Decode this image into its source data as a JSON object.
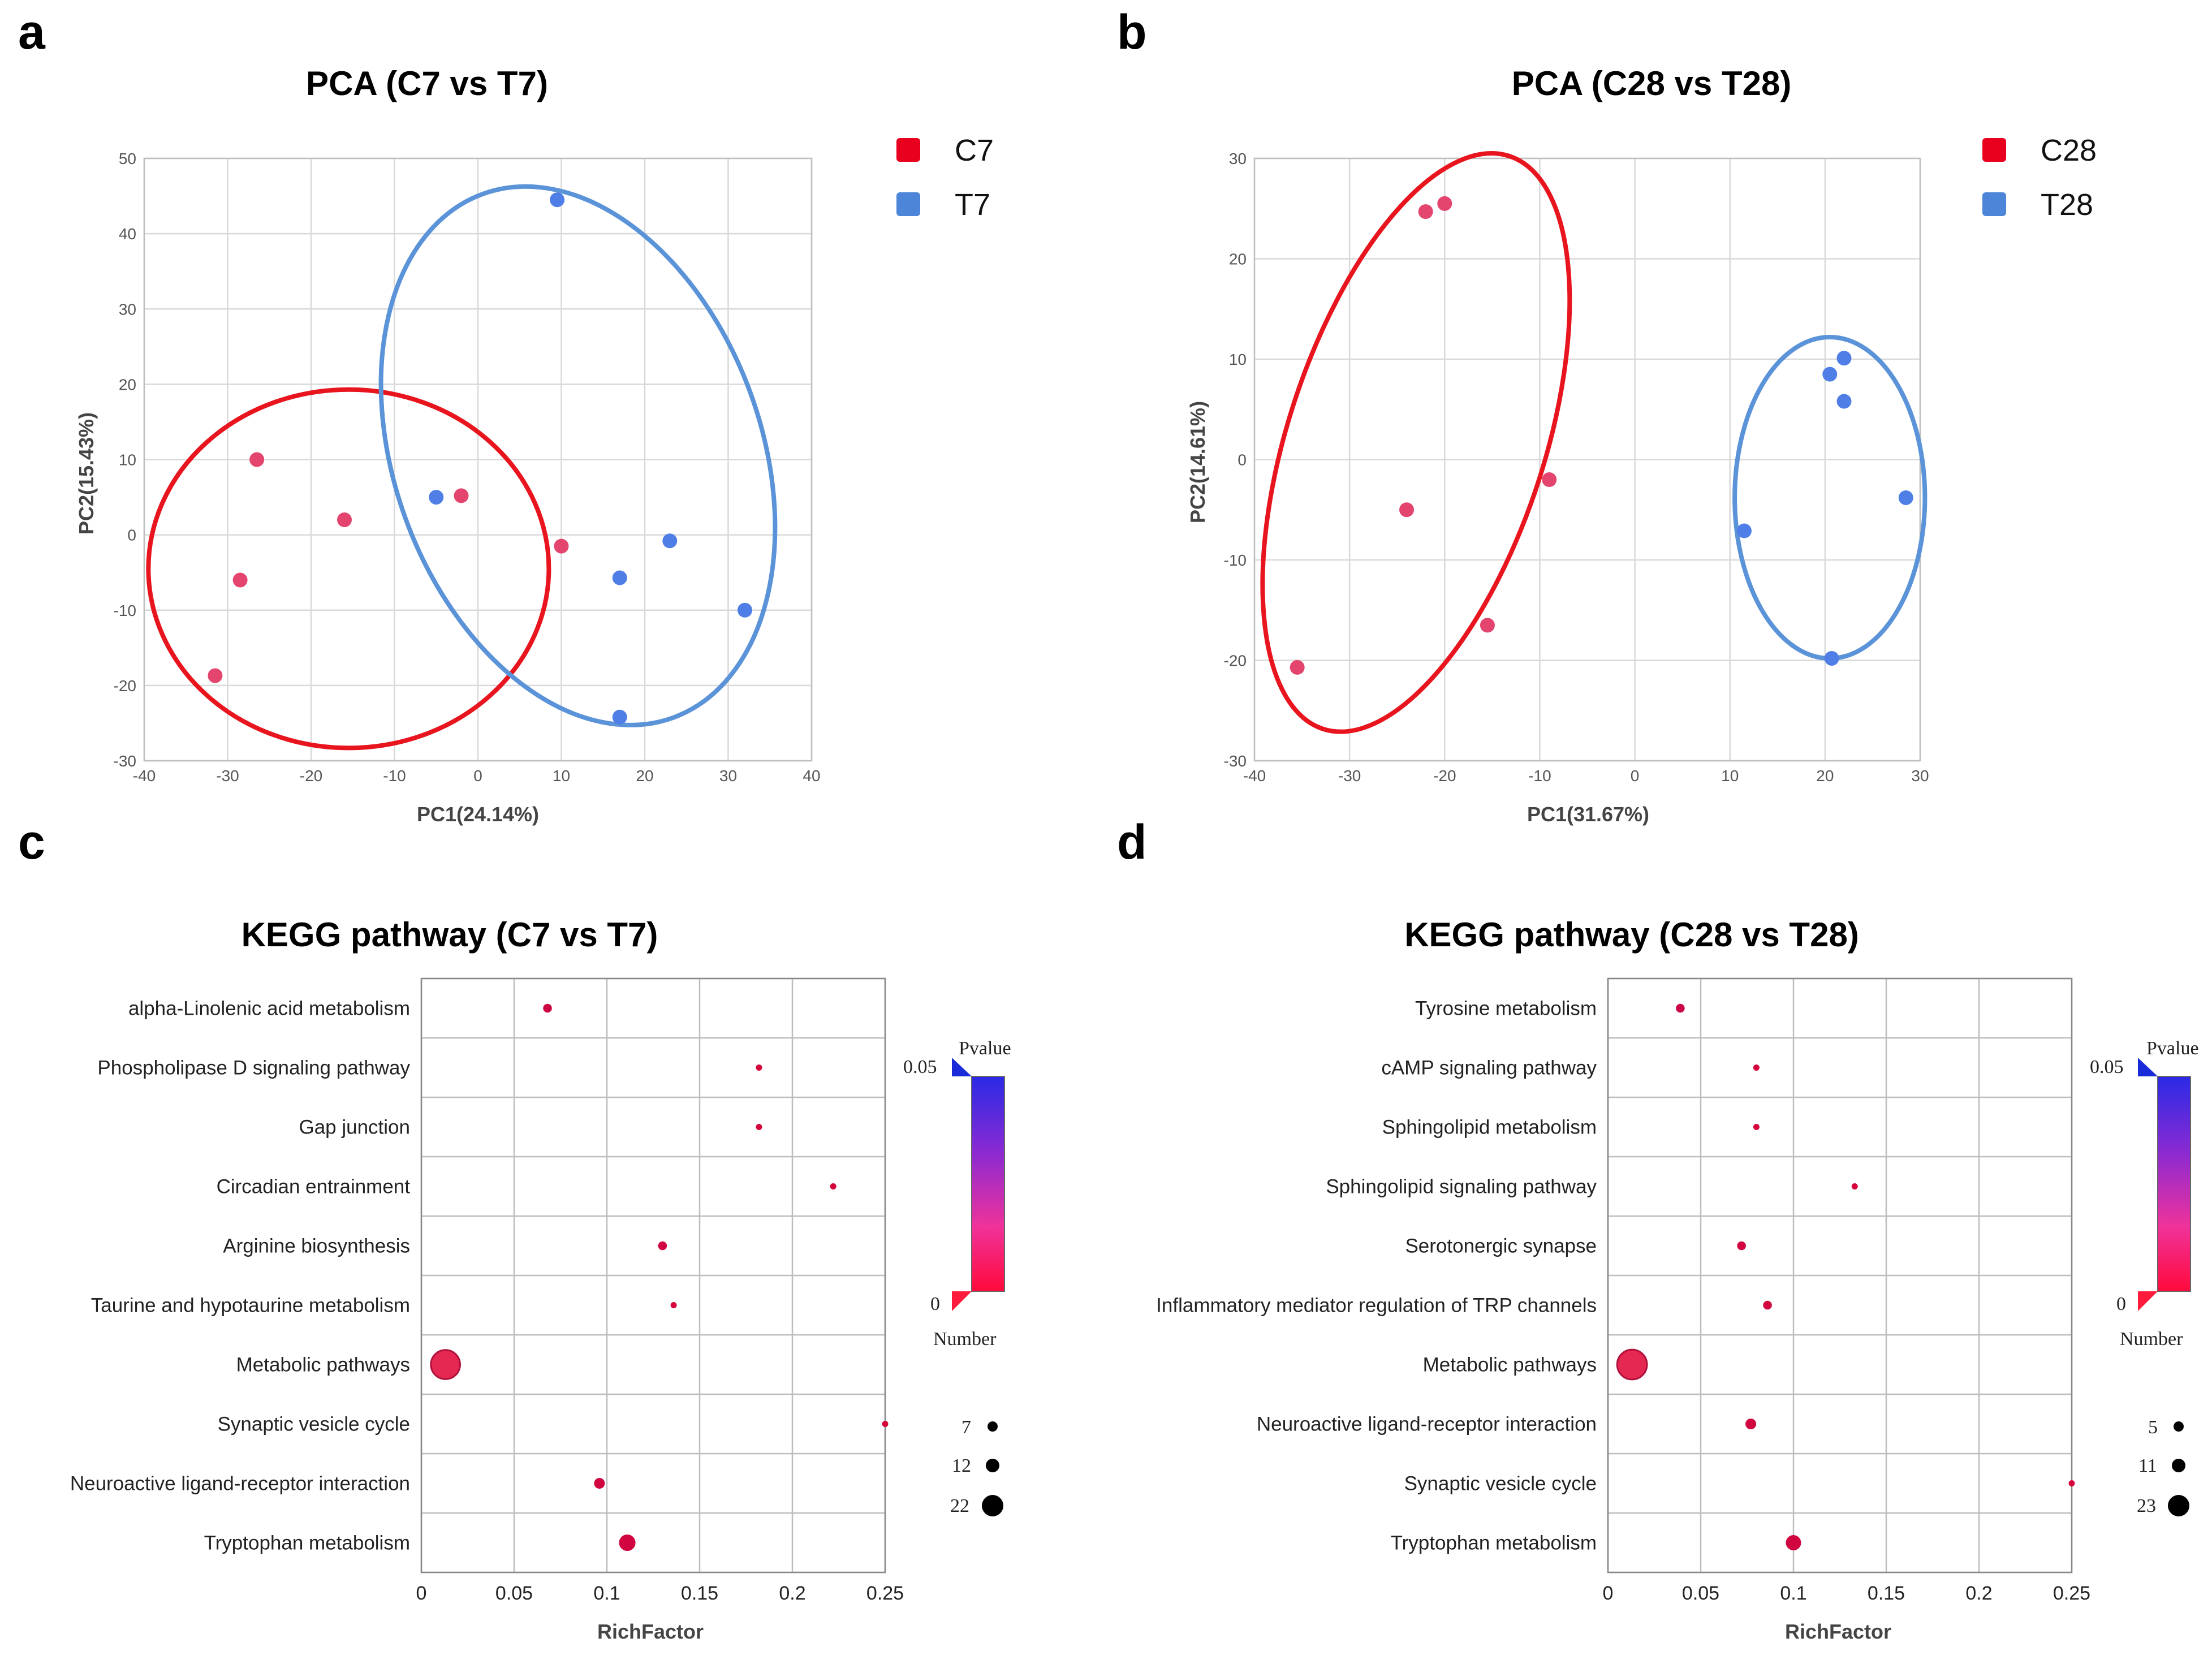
{
  "panels": {
    "a": "a",
    "b": "b",
    "c": "c",
    "d": "d"
  },
  "colors": {
    "red": "#e8001e",
    "blue": "#4d86d8",
    "ellipse_red": "#e8141e",
    "ellipse_blue": "#5b93d8",
    "point_red": "#e3456e",
    "point_blue": "#4f7fe6"
  },
  "chart_data": [
    {
      "id": "pca_c7_t7",
      "type": "scatter",
      "title": "PCA (C7 vs T7)",
      "xlabel": "PC1(24.14%)",
      "ylabel": "PC2(15.43%)",
      "xlim": [
        -40,
        40
      ],
      "ylim": [
        -30,
        50
      ],
      "xticks": [
        -40,
        -30,
        -20,
        -10,
        0,
        10,
        20,
        30,
        40
      ],
      "yticks": [
        -30,
        -20,
        -10,
        0,
        10,
        20,
        30,
        40,
        50
      ],
      "grid": true,
      "legend_position": "top-right",
      "series": [
        {
          "name": "C7",
          "color": "red",
          "points": [
            [
              -26.5,
              10
            ],
            [
              -16,
              2
            ],
            [
              -2,
              5.2
            ],
            [
              -28.5,
              -6
            ],
            [
              10,
              -1.5
            ],
            [
              -31.5,
              -18.7
            ]
          ],
          "ellipse": {
            "cx": -15.5,
            "cy": -4.5,
            "rx": 24,
            "ry": 23.8,
            "rotation": 0
          }
        },
        {
          "name": "T7",
          "color": "blue",
          "points": [
            [
              9.5,
              44.5
            ],
            [
              -5,
              5
            ],
            [
              23,
              -0.8
            ],
            [
              17,
              -5.7
            ],
            [
              32,
              -10
            ],
            [
              17,
              -24.2
            ]
          ],
          "ellipse": {
            "cx": 12,
            "cy": 10.5,
            "rx": 22,
            "ry": 37,
            "rotation": -20
          }
        }
      ]
    },
    {
      "id": "pca_c28_t28",
      "type": "scatter",
      "title": "PCA (C28 vs T28)",
      "xlabel": "PC1(31.67%)",
      "ylabel": "PC2(14.61%)",
      "xlim": [
        -40,
        30
      ],
      "ylim": [
        -30,
        30
      ],
      "xticks": [
        -40,
        -30,
        -20,
        -10,
        0,
        10,
        20,
        30
      ],
      "yticks": [
        -30,
        -20,
        -10,
        0,
        10,
        20,
        30
      ],
      "grid": true,
      "legend_position": "top-right",
      "series": [
        {
          "name": "C28",
          "color": "red",
          "points": [
            [
              -22,
              24.7
            ],
            [
              -20,
              25.5
            ],
            [
              -24,
              -5
            ],
            [
              -9,
              -2
            ],
            [
              -15.5,
              -16.5
            ],
            [
              -35.5,
              -20.7
            ]
          ],
          "ellipse": {
            "cx": -23,
            "cy": 1.7,
            "rx": 13.5,
            "ry": 30,
            "rotation": 18
          }
        },
        {
          "name": "T28",
          "color": "blue",
          "points": [
            [
              20.5,
              8.5
            ],
            [
              22,
              10.1
            ],
            [
              22,
              5.8
            ],
            [
              28.5,
              -3.8
            ],
            [
              11.5,
              -7.1
            ],
            [
              20.7,
              -19.8
            ]
          ],
          "ellipse": {
            "cx": 20.5,
            "cy": -3.8,
            "rx": 10,
            "ry": 16,
            "rotation": 0
          }
        }
      ]
    },
    {
      "id": "kegg_c7_t7",
      "type": "scatter",
      "subtype": "bubble",
      "title": "KEGG pathway (C7 vs T7)",
      "xlabel": "RichFactor",
      "xlim": [
        0,
        0.25
      ],
      "xticks": [
        "0",
        "0.05",
        "0.1",
        "0.15",
        "0.2",
        "0.25"
      ],
      "categories": [
        "alpha-Linolenic acid metabolism",
        "Phospholipase D signaling pathway",
        "Gap junction",
        "Circadian entrainment",
        "Arginine biosynthesis",
        "Taurine and hypotaurine metabolism",
        "Metabolic pathways",
        "Synaptic vesicle cycle",
        "Neuroactive ligand-receptor interaction",
        "Tryptophan metabolism"
      ],
      "values": [
        0.068,
        0.182,
        0.182,
        0.222,
        0.13,
        0.136,
        0.013,
        0.25,
        0.096,
        0.111
      ],
      "number": [
        2,
        1,
        1,
        1,
        2,
        1,
        22,
        1,
        3,
        7
      ],
      "pvalue_fraction": [
        0.15,
        0.1,
        0.1,
        0.1,
        0.12,
        0.1,
        0.05,
        0.1,
        0.12,
        0.12
      ],
      "colorbar": {
        "label": "Pvalue",
        "max_label": "0.05",
        "min_label": "0"
      },
      "size_legend": {
        "label": "Number",
        "entries": [
          "7",
          "12",
          "22"
        ]
      }
    },
    {
      "id": "kegg_c28_t28",
      "type": "scatter",
      "subtype": "bubble",
      "title": "KEGG pathway (C28 vs T28)",
      "xlabel": "RichFactor",
      "xlim": [
        0,
        0.25
      ],
      "xticks": [
        "0",
        "0.05",
        "0.1",
        "0.15",
        "0.2",
        "0.25"
      ],
      "categories": [
        "Tyrosine metabolism",
        "cAMP signaling pathway",
        "Sphingolipid metabolism",
        "Sphingolipid signaling pathway",
        "Serotonergic synapse",
        "Inflammatory mediator regulation of TRP channels",
        "Metabolic pathways",
        "Neuroactive ligand-receptor interaction",
        "Synaptic vesicle cycle",
        "Tryptophan metabolism"
      ],
      "values": [
        0.039,
        0.08,
        0.08,
        0.133,
        0.072,
        0.086,
        0.013,
        0.077,
        0.25,
        0.1
      ],
      "number": [
        2,
        1,
        1,
        1,
        2,
        2,
        23,
        3,
        1,
        6
      ],
      "pvalue_fraction": [
        0.15,
        0.1,
        0.1,
        0.1,
        0.12,
        0.12,
        0.05,
        0.12,
        0.1,
        0.12
      ],
      "colorbar": {
        "label": "Pvalue",
        "max_label": "0.05",
        "min_label": "0"
      },
      "size_legend": {
        "label": "Number",
        "entries": [
          "5",
          "11",
          "23"
        ]
      }
    }
  ]
}
